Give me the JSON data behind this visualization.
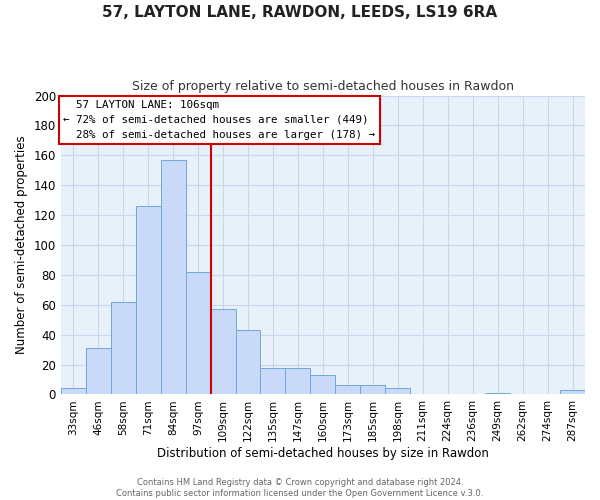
{
  "title": "57, LAYTON LANE, RAWDON, LEEDS, LS19 6RA",
  "subtitle": "Size of property relative to semi-detached houses in Rawdon",
  "xlabel": "Distribution of semi-detached houses by size in Rawdon",
  "ylabel": "Number of semi-detached properties",
  "bin_labels": [
    "33sqm",
    "46sqm",
    "58sqm",
    "71sqm",
    "84sqm",
    "97sqm",
    "109sqm",
    "122sqm",
    "135sqm",
    "147sqm",
    "160sqm",
    "173sqm",
    "185sqm",
    "198sqm",
    "211sqm",
    "224sqm",
    "236sqm",
    "249sqm",
    "262sqm",
    "274sqm",
    "287sqm"
  ],
  "bar_heights": [
    4,
    31,
    62,
    126,
    157,
    82,
    57,
    43,
    18,
    18,
    13,
    6,
    6,
    4,
    0,
    0,
    0,
    1,
    0,
    0,
    3
  ],
  "bar_color": "#c9daf8",
  "bar_edge_color": "#6fa8dc",
  "ylim": [
    0,
    200
  ],
  "yticks": [
    0,
    20,
    40,
    60,
    80,
    100,
    120,
    140,
    160,
    180,
    200
  ],
  "property_label": "57 LAYTON LANE: 106sqm",
  "pct_smaller": 72,
  "count_smaller": 449,
  "pct_larger": 28,
  "count_larger": 178,
  "vline_x_index": 5.5,
  "annotation_box_edge": "#cc0000",
  "vline_color": "#cc0000",
  "grid_color": "#c8d8ec",
  "bg_color": "#e8f0fa",
  "footer1": "Contains HM Land Registry data © Crown copyright and database right 2024.",
  "footer2": "Contains public sector information licensed under the Open Government Licence v.3.0."
}
